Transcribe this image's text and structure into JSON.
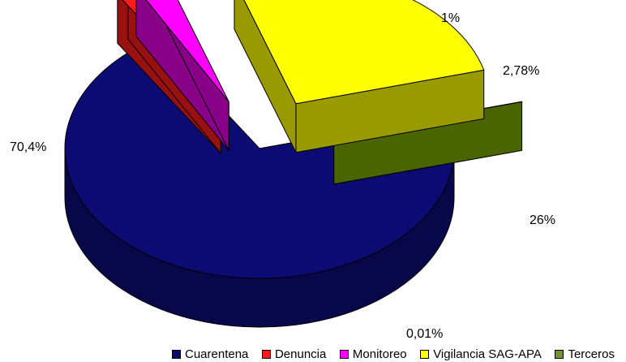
{
  "chart_data": {
    "type": "pie",
    "title": "",
    "categories": [
      "Cuarentena",
      "Denuncia",
      "Monitoreo",
      "Vigilancia SAG-APA",
      "Terceros"
    ],
    "values": [
      70.4,
      1,
      2.78,
      26,
      0.01
    ],
    "value_labels": [
      "70,4%",
      "1%",
      "2,78%",
      "26%",
      "0,01%"
    ],
    "colors": [
      "#0b0b73",
      "#ff1a1a",
      "#ff00ff",
      "#ffff00",
      "#76922f"
    ],
    "side_colors": [
      "#07074a",
      "#991010",
      "#880088",
      "#999900",
      "#4a6400"
    ],
    "legend_position": "bottom",
    "style": "3d-exploded"
  }
}
